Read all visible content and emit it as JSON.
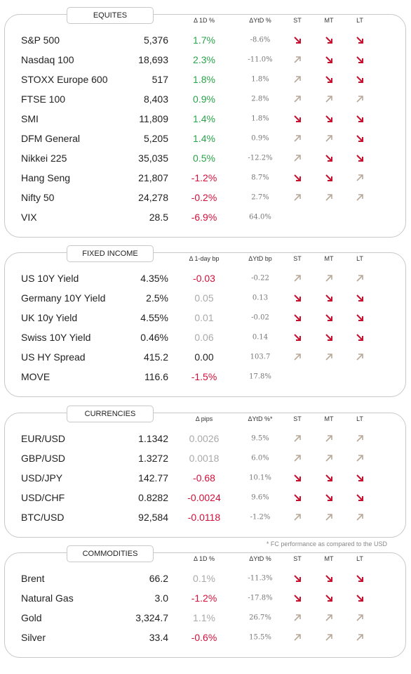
{
  "sections": [
    {
      "title": "EQUITES",
      "headers": [
        "Δ 1D %",
        "ΔYtD %",
        "ST",
        "MT",
        "LT"
      ],
      "rows": [
        {
          "name": "S&P 500",
          "value": "5,376",
          "change": "1.7%",
          "change_color": "green",
          "ytd": "-8.6%",
          "trend": [
            "down",
            "down",
            "down"
          ]
        },
        {
          "name": "Nasdaq 100",
          "value": "18,693",
          "change": "2.3%",
          "change_color": "green",
          "ytd": "-11.0%",
          "trend": [
            "up",
            "down",
            "down"
          ]
        },
        {
          "name": "STOXX Europe 600",
          "value": "517",
          "change": "1.8%",
          "change_color": "green",
          "ytd": "1.8%",
          "trend": [
            "up",
            "down",
            "down"
          ]
        },
        {
          "name": "FTSE 100",
          "value": "8,403",
          "change": "0.9%",
          "change_color": "green",
          "ytd": "2.8%",
          "trend": [
            "up",
            "up",
            "up"
          ]
        },
        {
          "name": "SMI",
          "value": "11,809",
          "change": "1.4%",
          "change_color": "green",
          "ytd": "1.8%",
          "trend": [
            "down",
            "down",
            "down"
          ]
        },
        {
          "name": "DFM General",
          "value": "5,205",
          "change": "1.4%",
          "change_color": "green",
          "ytd": "0.9%",
          "trend": [
            "up",
            "up",
            "down"
          ]
        },
        {
          "name": "Nikkei 225",
          "value": "35,035",
          "change": "0.5%",
          "change_color": "green",
          "ytd": "-12.2%",
          "trend": [
            "up",
            "down",
            "down"
          ]
        },
        {
          "name": "Hang Seng",
          "value": "21,807",
          "change": "-1.2%",
          "change_color": "red",
          "ytd": "8.7%",
          "trend": [
            "down",
            "down",
            "up"
          ]
        },
        {
          "name": "Nifty  50",
          "value": "24,278",
          "change": "-0.2%",
          "change_color": "red",
          "ytd": "2.7%",
          "trend": [
            "up",
            "up",
            "up"
          ]
        },
        {
          "name": "VIX",
          "value": "28.5",
          "change": "-6.9%",
          "change_color": "red",
          "ytd": "64.0%",
          "trend": null
        }
      ]
    },
    {
      "title": "FIXED INCOME",
      "headers": [
        "Δ 1-day bp",
        "ΔYtD bp",
        "ST",
        "MT",
        "LT"
      ],
      "rows": [
        {
          "name": "US 10Y Yield",
          "value": "4.35%",
          "change": "-0.03",
          "change_color": "red",
          "ytd": "-0.22",
          "trend": [
            "up",
            "up",
            "up"
          ]
        },
        {
          "name": "Germany 10Y Yield",
          "value": "2.5%",
          "change": "0.05",
          "change_color": "grey",
          "ytd": "0.13",
          "trend": [
            "down",
            "down",
            "down"
          ]
        },
        {
          "name": "UK 10y Yield",
          "value": "4.55%",
          "change": "0.01",
          "change_color": "grey",
          "ytd": "-0.02",
          "trend": [
            "down",
            "down",
            "down"
          ]
        },
        {
          "name": "Swiss 10Y Yield",
          "value": "0.46%",
          "change": "0.06",
          "change_color": "grey",
          "ytd": "0.14",
          "trend": [
            "down",
            "down",
            "down"
          ]
        },
        {
          "name": "US HY Spread",
          "value": "415.2",
          "change": "0.00",
          "change_color": "black",
          "ytd": "103.7",
          "trend": [
            "up",
            "up",
            "up"
          ]
        },
        {
          "name": "MOVE",
          "value": "116.6",
          "change": "-1.5%",
          "change_color": "red",
          "ytd": "17.8%",
          "trend": null
        }
      ]
    },
    {
      "title": "CURRENCIES",
      "headers": [
        "Δ pips",
        "ΔYtD %*",
        "ST",
        "MT",
        "LT"
      ],
      "rows": [
        {
          "name": "EUR/USD",
          "value": "1.1342",
          "change": "0.0026",
          "change_color": "grey",
          "ytd": "9.5%",
          "trend": [
            "up",
            "up",
            "up"
          ]
        },
        {
          "name": "GBP/USD",
          "value": "1.3272",
          "change": "0.0018",
          "change_color": "grey",
          "ytd": "6.0%",
          "trend": [
            "up",
            "up",
            "up"
          ]
        },
        {
          "name": "USD/JPY",
          "value": "142.77",
          "change": "-0.68",
          "change_color": "red",
          "ytd": "10.1%",
          "trend": [
            "down",
            "down",
            "down"
          ]
        },
        {
          "name": "USD/CHF",
          "value": "0.8282",
          "change": "-0.0024",
          "change_color": "red",
          "ytd": "9.6%",
          "trend": [
            "down",
            "down",
            "down"
          ]
        },
        {
          "name": "BTC/USD",
          "value": "92,584",
          "change": "-0.0118",
          "change_color": "red",
          "ytd": "-1.2%",
          "trend": [
            "up",
            "up",
            "up"
          ]
        }
      ]
    },
    {
      "title": "COMMODITIES",
      "headers": [
        "Δ 1D %",
        "ΔYtD %",
        "ST",
        "MT",
        "LT"
      ],
      "rows": [
        {
          "name": "Brent",
          "value": "66.2",
          "change": "0.1%",
          "change_color": "grey",
          "ytd": "-11.3%",
          "trend": [
            "down",
            "down",
            "down"
          ]
        },
        {
          "name": "Natural Gas",
          "value": "3.0",
          "change": "-1.2%",
          "change_color": "red",
          "ytd": "-17.8%",
          "trend": [
            "down",
            "down",
            "down"
          ]
        },
        {
          "name": "Gold",
          "value": "3,324.7",
          "change": "1.1%",
          "change_color": "grey",
          "ytd": "26.7%",
          "trend": [
            "up",
            "up",
            "up"
          ]
        },
        {
          "name": "Silver",
          "value": "33.4",
          "change": "-0.6%",
          "change_color": "red",
          "ytd": "15.5%",
          "trend": [
            "up",
            "up",
            "up"
          ]
        }
      ]
    }
  ],
  "footnote": "* FC performance as compared to the USD"
}
